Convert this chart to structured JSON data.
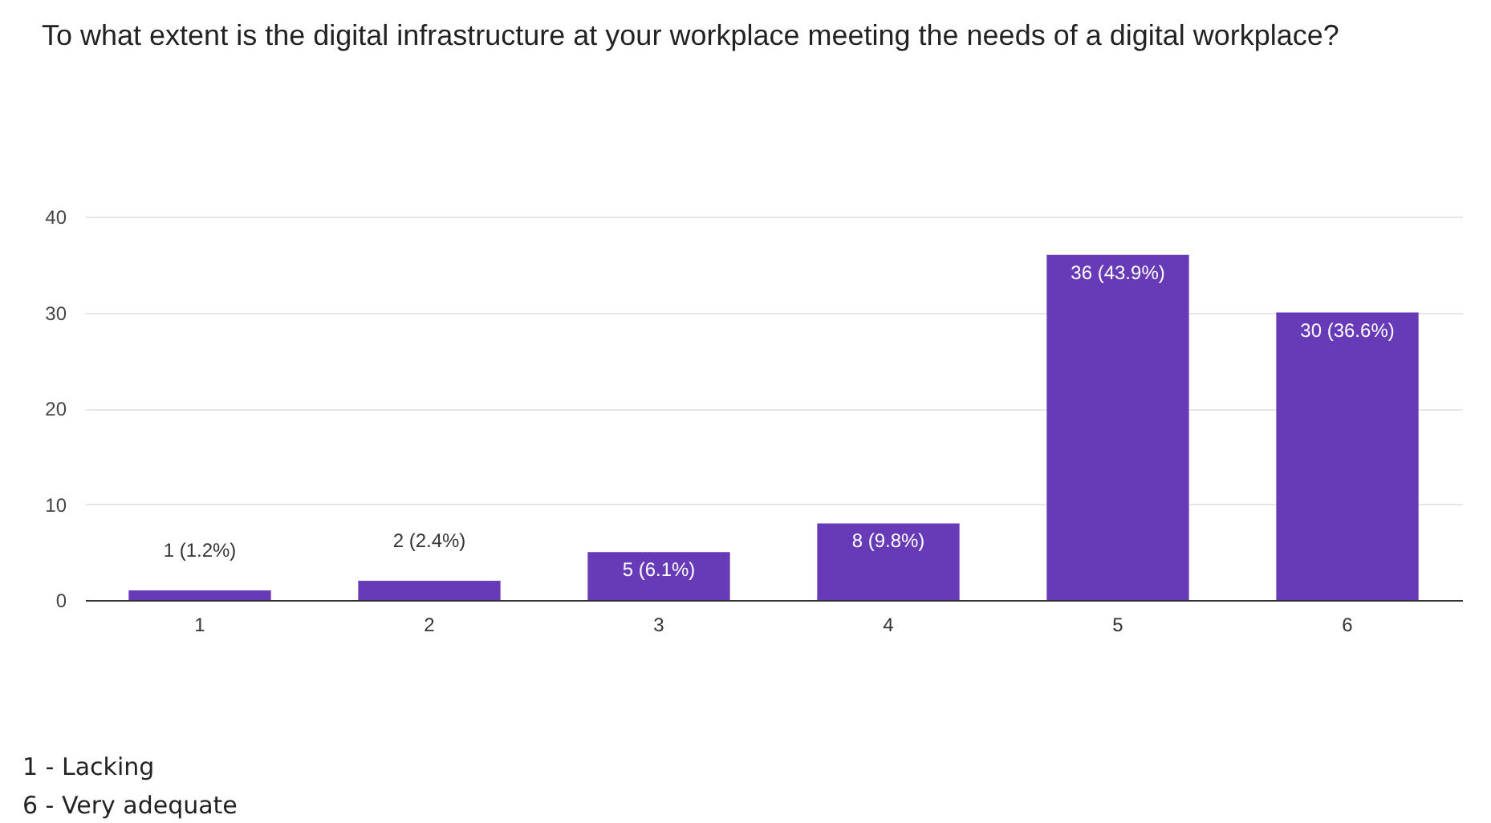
{
  "chart_data": {
    "type": "bar",
    "title": "To what extent is the digital infrastructure at your workplace meeting the needs of a digital workplace?",
    "categories": [
      "1",
      "2",
      "3",
      "4",
      "5",
      "6"
    ],
    "values": [
      1,
      2,
      5,
      8,
      36,
      30
    ],
    "value_labels": [
      "1 (1.2%)",
      "2 (2.4%)",
      "5 (6.1%)",
      "8 (9.8%)",
      "36 (43.9%)",
      "30 (36.6%)"
    ],
    "color": "#673ab7",
    "ylim": [
      0,
      40
    ],
    "yticks": [
      0,
      10,
      20,
      30,
      40
    ],
    "grid": "y",
    "annotations": [
      "1 - Lacking",
      "6 - Very adequate"
    ]
  }
}
